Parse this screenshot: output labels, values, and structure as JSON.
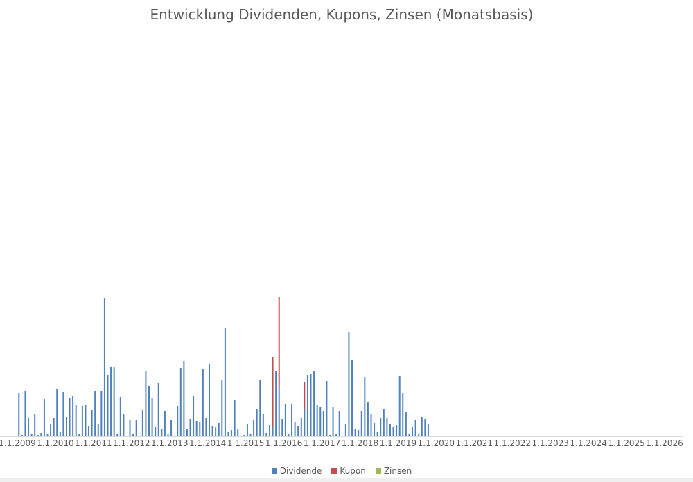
{
  "chart_data": {
    "type": "bar",
    "stacked": true,
    "title": "Entwicklung Dividenden, Kupons, Zinsen (Monatsbasis)",
    "xlabel": "",
    "ylabel": "",
    "y_axis_visible": false,
    "grid": false,
    "legend_position": "bottom",
    "x_tick_labels": [
      "1.1.2009",
      "1.1.2010",
      "1.1.2011",
      "1.1.2012",
      "1.1.2013",
      "1.1.2014",
      "1.1.2015",
      "1.1.2016",
      "1.1.2017",
      "1.1.2018",
      "1.1.2019",
      "1.1.2020",
      "1.1.2021",
      "1.1.2022",
      "1.1.2023",
      "1.1.2024",
      "1.1.2025",
      "1.1.2026"
    ],
    "start_month": "2009-01",
    "series": [
      {
        "name": "Dividende",
        "color": "#4f81bd",
        "values": [
          62,
          2,
          66,
          26,
          3,
          32,
          2,
          5,
          54,
          3,
          18,
          26,
          68,
          6,
          64,
          28,
          55,
          58,
          45,
          3,
          44,
          45,
          15,
          38,
          66,
          18,
          65,
          200,
          89,
          100,
          100,
          4,
          57,
          32,
          1,
          23,
          3,
          24,
          1,
          38,
          95,
          73,
          55,
          13,
          77,
          11,
          36,
          3,
          24,
          1,
          44,
          99,
          109,
          10,
          25,
          58,
          22,
          20,
          97,
          27,
          105,
          15,
          13,
          19,
          82,
          157,
          6,
          9,
          52,
          10,
          1,
          2,
          18,
          4,
          24,
          40,
          82,
          32,
          5,
          16,
          14,
          94,
          71,
          25,
          46,
          3,
          47,
          21,
          15,
          26,
          39,
          88,
          90,
          94,
          45,
          42,
          37,
          80,
          2,
          43,
          3,
          37,
          1,
          18,
          150,
          110,
          10,
          9,
          36,
          85,
          50,
          32,
          19,
          6,
          27,
          39,
          27,
          18,
          14,
          17,
          87,
          63,
          35,
          4,
          14,
          24,
          4,
          28,
          25,
          18,
          0,
          0,
          0,
          0,
          0,
          0,
          0,
          0,
          0,
          0,
          0,
          0,
          0,
          0,
          0,
          0,
          0,
          0,
          0,
          0,
          0,
          0,
          0,
          0,
          0,
          0,
          0,
          0,
          0,
          0,
          0,
          0,
          0,
          0,
          0,
          0,
          0,
          0,
          0,
          0,
          0,
          0,
          0,
          0,
          0,
          0,
          0,
          0,
          0,
          0,
          0,
          0,
          0,
          0,
          0,
          0,
          0,
          0,
          0,
          0,
          0,
          0,
          0,
          0,
          0,
          0,
          0,
          0,
          0,
          0,
          0,
          0,
          0,
          0,
          0,
          0,
          0,
          0,
          0,
          0,
          0,
          0,
          0,
          0,
          0,
          0,
          0,
          0,
          0,
          0,
          0,
          0,
          0,
          0,
          0,
          0,
          0,
          0,
          0,
          0,
          0,
          0,
          0,
          0,
          0,
          0,
          0,
          0,
          0,
          0,
          0,
          0,
          0,
          0,
          0,
          0,
          0,
          0,
          0,
          0,
          0,
          0,
          0,
          0,
          0,
          0,
          0,
          0,
          0,
          0,
          0,
          0,
          0
        ]
      },
      {
        "name": "Kupon",
        "color": "#c0504d",
        "values": [
          0,
          0,
          0,
          0,
          0,
          0,
          0,
          0,
          0,
          0,
          0,
          0,
          0,
          0,
          0,
          0,
          0,
          0,
          0,
          0,
          0,
          0,
          0,
          0,
          0,
          0,
          0,
          0,
          0,
          0,
          0,
          0,
          0,
          0,
          0,
          0,
          0,
          0,
          0,
          0,
          0,
          0,
          0,
          0,
          0,
          0,
          0,
          0,
          0,
          0,
          0,
          0,
          0,
          0,
          0,
          0,
          0,
          0,
          0,
          0,
          0,
          0,
          0,
          0,
          0,
          0,
          0,
          0,
          0,
          0,
          0,
          0,
          0,
          0,
          0,
          0,
          0,
          0,
          0,
          0,
          100,
          0,
          130,
          0,
          0,
          0,
          0,
          0,
          0,
          0,
          40,
          0,
          0,
          0,
          0,
          0,
          0,
          0,
          0,
          0,
          0,
          0,
          0,
          0,
          0,
          0,
          0,
          0,
          0,
          0,
          0,
          0,
          0,
          0,
          0,
          0,
          0,
          0,
          0,
          0,
          0,
          0,
          0,
          0,
          0,
          0,
          0,
          0,
          0,
          0,
          0,
          0,
          0,
          0,
          0,
          0,
          0,
          0,
          0,
          0,
          0,
          0,
          0,
          0,
          0,
          0,
          0,
          0,
          0,
          0,
          0,
          0,
          0,
          0,
          0,
          0,
          0,
          0,
          0,
          0,
          0,
          0,
          0,
          0,
          0,
          0,
          0,
          0,
          0,
          0,
          0,
          0,
          0,
          0,
          0,
          0,
          0,
          0,
          0,
          0,
          0,
          0,
          0,
          0,
          0,
          0,
          0,
          0,
          0,
          0,
          0,
          0,
          0,
          0,
          0,
          0,
          0,
          0,
          0,
          0,
          0,
          0,
          0,
          0,
          0,
          0,
          0,
          0,
          0,
          0,
          0,
          0,
          0,
          0,
          0,
          0,
          0,
          0,
          0,
          0,
          0,
          0,
          0,
          0,
          0,
          0,
          0,
          0,
          0,
          0,
          0,
          0,
          0,
          0,
          0,
          0,
          0,
          0,
          0,
          0,
          0,
          0,
          0,
          0,
          0,
          0,
          0,
          0,
          0,
          0,
          0,
          0,
          0,
          0,
          0,
          0,
          0,
          0,
          0,
          0,
          0,
          0,
          0,
          0
        ]
      },
      {
        "name": "Zinsen",
        "color": "#9bbb59",
        "values": [
          0,
          0,
          0,
          0,
          0,
          0,
          0,
          0,
          0,
          0,
          0,
          0,
          0,
          0,
          0,
          0,
          0,
          0,
          0,
          0,
          0,
          0,
          0,
          0,
          0,
          0,
          0,
          0,
          0,
          0,
          0,
          0,
          0,
          0,
          0,
          0,
          0,
          0,
          0,
          0,
          0,
          0,
          0,
          0,
          0,
          0,
          0,
          0,
          0,
          0,
          0,
          0,
          0,
          0,
          0,
          0,
          0,
          0,
          0,
          0,
          0,
          0,
          0,
          0,
          0,
          0,
          0,
          0,
          0,
          0,
          0,
          0,
          0,
          0,
          0,
          0,
          0,
          0,
          0,
          0,
          0,
          0,
          0,
          0,
          0,
          0,
          0,
          0,
          0,
          0,
          0,
          0,
          0,
          0,
          0,
          0,
          0,
          0,
          0,
          0,
          0,
          0,
          0,
          0,
          0,
          0,
          0,
          0,
          0,
          0,
          0,
          0,
          0,
          0,
          0,
          0,
          0,
          0,
          0,
          0,
          0,
          0,
          0,
          0,
          0,
          0,
          0,
          0,
          0,
          0,
          0,
          0,
          0,
          0,
          0,
          0,
          0,
          0,
          0,
          0,
          0,
          0,
          0,
          0,
          0,
          0,
          0,
          0,
          0,
          0,
          0,
          0,
          0,
          0,
          0,
          0,
          0,
          0,
          0,
          0,
          0,
          0,
          0,
          0,
          0,
          0,
          0,
          0,
          0,
          0,
          0,
          0,
          0,
          0,
          0,
          0,
          0,
          0,
          0,
          0,
          0,
          0,
          0,
          0,
          0,
          0,
          0,
          0,
          0,
          0,
          0,
          0,
          0,
          0,
          0,
          0,
          0,
          0,
          0,
          0,
          0,
          0,
          0,
          0,
          0,
          0,
          0,
          0,
          0,
          0,
          0,
          0,
          0,
          0,
          0,
          0,
          0,
          0,
          0,
          0,
          0,
          0,
          0,
          0,
          0,
          0,
          0,
          0,
          0,
          0,
          0,
          0,
          0,
          0,
          0,
          0,
          0,
          0,
          0,
          0,
          0,
          0,
          0,
          0,
          0,
          0,
          0,
          0,
          0,
          0,
          0,
          0,
          0,
          0,
          0,
          0,
          0,
          0,
          0,
          0,
          0,
          0,
          0,
          0,
          0,
          0,
          0,
          0,
          0,
          0
        ]
      }
    ]
  }
}
